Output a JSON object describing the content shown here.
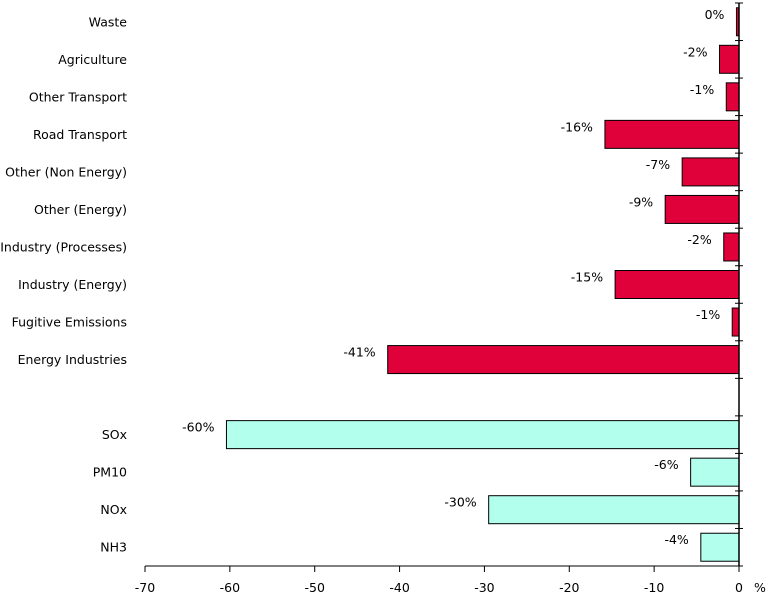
{
  "chart_data": {
    "type": "bar",
    "orientation": "horizontal",
    "xlabel": "%",
    "xlim": [
      -70,
      0
    ],
    "xticks": [
      -70,
      -60,
      -50,
      -40,
      -30,
      -20,
      -10,
      0
    ],
    "grid": false,
    "legend": "none",
    "colors": {
      "sectors": "#e0003a",
      "pollutants": "#b3ffee",
      "edge": "#000000"
    },
    "rows": [
      {
        "category": "Waste",
        "value": -0.3,
        "label": "0%",
        "group": "sectors"
      },
      {
        "category": "Agriculture",
        "value": -2.3,
        "label": "-2%",
        "group": "sectors"
      },
      {
        "category": "Other Transport",
        "value": -1.5,
        "label": "-1%",
        "group": "sectors"
      },
      {
        "category": "Road Transport",
        "value": -15.8,
        "label": "-16%",
        "group": "sectors"
      },
      {
        "category": "Other (Non Energy)",
        "value": -6.7,
        "label": "-7%",
        "group": "sectors"
      },
      {
        "category": "Other (Energy)",
        "value": -8.7,
        "label": "-9%",
        "group": "sectors"
      },
      {
        "category": "Industry (Processes)",
        "value": -1.8,
        "label": "-2%",
        "group": "sectors"
      },
      {
        "category": "Industry (Energy)",
        "value": -14.6,
        "label": "-15%",
        "group": "sectors"
      },
      {
        "category": "Fugitive Emissions",
        "value": -0.8,
        "label": "-1%",
        "group": "sectors"
      },
      {
        "category": "Energy Industries",
        "value": -41.4,
        "label": "-41%",
        "group": "sectors"
      },
      {
        "category": "",
        "value": null,
        "label": "",
        "group": "spacer"
      },
      {
        "category": "SOx",
        "value": -60.4,
        "label": "-60%",
        "group": "pollutants"
      },
      {
        "category": "PM10",
        "value": -5.7,
        "label": "-6%",
        "group": "pollutants"
      },
      {
        "category": "NOx",
        "value": -29.5,
        "label": "-30%",
        "group": "pollutants"
      },
      {
        "category": "NH3",
        "value": -4.5,
        "label": "-4%",
        "group": "pollutants"
      }
    ]
  }
}
